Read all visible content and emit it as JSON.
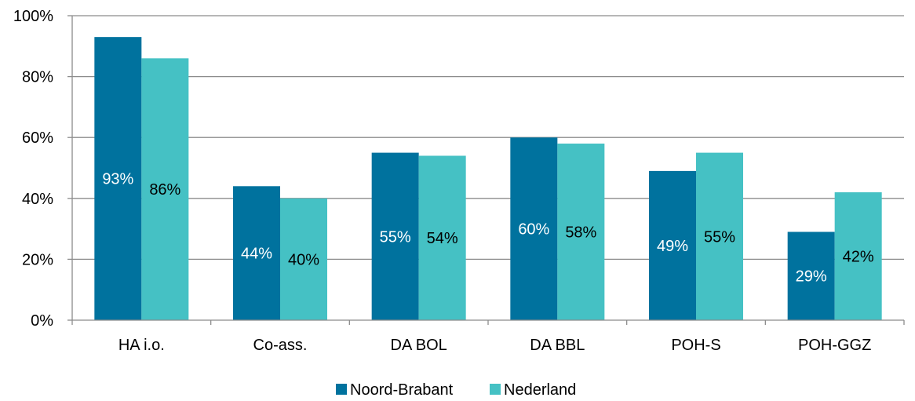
{
  "chart_data": {
    "type": "bar",
    "categories": [
      "HA i.o.",
      "Co-ass.",
      "DA BOL",
      "DA BBL",
      "POH-S",
      "POH-GGZ"
    ],
    "series": [
      {
        "name": "Noord-Brabant",
        "values": [
          93,
          44,
          55,
          60,
          49,
          29
        ],
        "labels": [
          "93%",
          "44%",
          "55%",
          "60%",
          "49%",
          "29%"
        ]
      },
      {
        "name": "Nederland",
        "values": [
          86,
          40,
          54,
          58,
          55,
          42
        ],
        "labels": [
          "86%",
          "40%",
          "54%",
          "58%",
          "55%",
          "42%"
        ]
      }
    ],
    "y_ticks": [
      "0%",
      "20%",
      "40%",
      "60%",
      "80%",
      "100%"
    ],
    "ylim": [
      0,
      100
    ],
    "grid": true,
    "legend_position": "bottom",
    "colors": {
      "Noord-Brabant": "#00729E",
      "Nederland": "#45C1C4",
      "grid": "#8C8C8C"
    }
  }
}
